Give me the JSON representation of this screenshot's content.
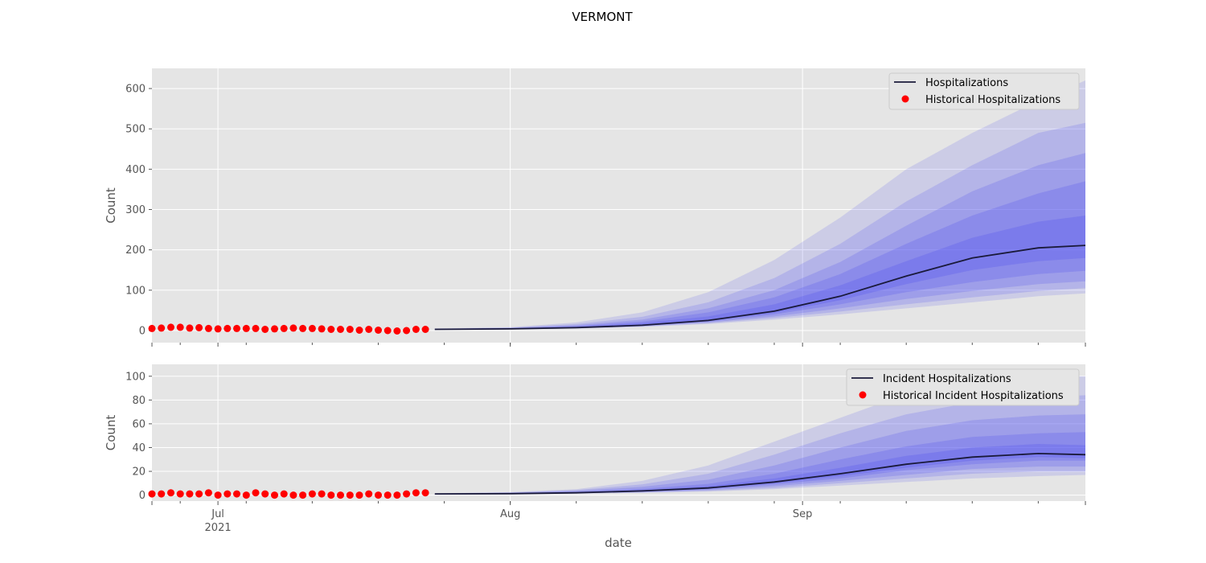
{
  "figure": {
    "title": "VERMONT",
    "xlabel": "date"
  },
  "colors": {
    "panel_bg": "#e5e5e5",
    "grid": "#ffffff",
    "band": "#5555ee",
    "median_line": "#1a1a3a",
    "observed": "#ff0000"
  },
  "chart_data": [
    {
      "type": "line",
      "title": "",
      "xlabel": "date",
      "ylabel": "Count",
      "xlim": [
        "2021-06-24",
        "2021-10-01"
      ],
      "ylim": [
        -30,
        650
      ],
      "yticks": [
        0,
        100,
        200,
        300,
        400,
        500,
        600
      ],
      "xticks": [
        {
          "date": "2021-07-01",
          "label": "",
          "sub": ""
        },
        {
          "date": "2021-08-01",
          "label": "",
          "sub": ""
        },
        {
          "date": "2021-09-01",
          "label": "",
          "sub": ""
        }
      ],
      "grid": true,
      "legend_position": "top-right",
      "legend": [
        "Hospitalizations",
        "Historical Hospitalizations"
      ],
      "observed": {
        "name": "Historical Hospitalizations",
        "start_date": "2021-06-24",
        "values": [
          5,
          6,
          8,
          8,
          6,
          7,
          5,
          4,
          5,
          5,
          5,
          5,
          3,
          4,
          5,
          6,
          5,
          5,
          4,
          3,
          3,
          3,
          1,
          3,
          1,
          0,
          -1,
          0,
          3,
          3
        ]
      },
      "forecast": {
        "name": "Hospitalizations",
        "dates": [
          "2021-07-24",
          "2021-08-01",
          "2021-08-08",
          "2021-08-15",
          "2021-08-22",
          "2021-08-29",
          "2021-09-05",
          "2021-09-12",
          "2021-09-19",
          "2021-09-26",
          "2021-10-01"
        ],
        "median": [
          3,
          4,
          7,
          13,
          25,
          48,
          85,
          135,
          180,
          205,
          211
        ],
        "band_pairs": [
          {
            "lower": [
              2,
              3,
              5,
              9,
              16,
              27,
              40,
              55,
              70,
              85,
              92
            ],
            "upper": [
              5,
              8,
              20,
              45,
              95,
              175,
              280,
              400,
              490,
              570,
              620
            ]
          },
          {
            "lower": [
              2,
              3,
              5,
              10,
              18,
              31,
              47,
              65,
              82,
              98,
              105
            ],
            "upper": [
              4,
              7,
              16,
              34,
              70,
              130,
              215,
              320,
              410,
              490,
              515
            ]
          },
          {
            "lower": [
              2,
              3,
              6,
              11,
              20,
              35,
              55,
              78,
              98,
              115,
              122
            ],
            "upper": [
              4,
              6,
              13,
              27,
              55,
              100,
              170,
              260,
              345,
              410,
              440
            ]
          },
          {
            "lower": [
              2,
              3,
              6,
              12,
              22,
              40,
              65,
              95,
              120,
              140,
              148
            ],
            "upper": [
              4,
              6,
              11,
              22,
              45,
              82,
              140,
              215,
              285,
              340,
              370
            ]
          },
          {
            "lower": [
              3,
              4,
              7,
              12,
              24,
              44,
              75,
              115,
              150,
              172,
              180
            ],
            "upper": [
              4,
              5,
              9,
              18,
              35,
              65,
              112,
              172,
              230,
              270,
              285
            ]
          }
        ]
      }
    },
    {
      "type": "line",
      "title": "",
      "xlabel": "date",
      "ylabel": "Count",
      "xlim": [
        "2021-06-24",
        "2021-10-01"
      ],
      "ylim": [
        -5,
        110
      ],
      "yticks": [
        0,
        20,
        40,
        60,
        80,
        100
      ],
      "xticks": [
        {
          "date": "2021-07-01",
          "label": "Jul",
          "sub": "2021"
        },
        {
          "date": "2021-08-01",
          "label": "Aug",
          "sub": ""
        },
        {
          "date": "2021-09-01",
          "label": "Sep",
          "sub": ""
        }
      ],
      "grid": true,
      "legend_position": "top-right",
      "legend": [
        "Incident Hospitalizations",
        "Historical Incident Hospitalizations"
      ],
      "observed": {
        "name": "Historical Incident Hospitalizations",
        "start_date": "2021-06-24",
        "values": [
          1,
          1,
          2,
          1,
          1,
          1,
          2,
          0,
          1,
          1,
          0,
          2,
          1,
          0,
          1,
          0,
          0,
          1,
          1,
          0,
          0,
          0,
          0,
          1,
          0,
          0,
          0,
          1,
          2,
          2
        ]
      },
      "forecast": {
        "name": "Incident Hospitalizations",
        "dates": [
          "2021-07-24",
          "2021-08-01",
          "2021-08-08",
          "2021-08-15",
          "2021-08-22",
          "2021-08-29",
          "2021-09-05",
          "2021-09-12",
          "2021-09-19",
          "2021-09-26",
          "2021-10-01"
        ],
        "median": [
          1,
          1.2,
          2,
          3.5,
          6,
          11,
          18,
          26,
          32,
          35,
          34
        ],
        "band_pairs": [
          {
            "lower": [
              0.5,
              0.8,
              1.2,
              2,
              3,
              5,
              8,
              11,
              14,
              16,
              17
            ],
            "upper": [
              1.5,
              2.5,
              5,
              12,
              25,
              45,
              65,
              85,
              95,
              100,
              100
            ]
          },
          {
            "lower": [
              0.6,
              0.9,
              1.4,
              2.3,
              3.6,
              6,
              10,
              14,
              18,
              20,
              20
            ],
            "upper": [
              1.4,
              2.2,
              4.2,
              9,
              18,
              34,
              52,
              68,
              78,
              82,
              84
            ]
          },
          {
            "lower": [
              0.7,
              1,
              1.6,
              2.6,
              4.2,
              7.5,
              12,
              17,
              22,
              24,
              24
            ],
            "upper": [
              1.3,
              1.9,
              3.5,
              7,
              13,
              25,
              40,
              54,
              63,
              67,
              68
            ]
          },
          {
            "lower": [
              0.8,
              1.05,
              1.7,
              3,
              5,
              9,
              14,
              21,
              26,
              29,
              29
            ],
            "upper": [
              1.2,
              1.6,
              2.8,
              5.3,
              9.5,
              18,
              30,
              41,
              49,
              52,
              53
            ]
          },
          {
            "lower": [
              0.9,
              1.1,
              1.8,
              3.2,
              5.5,
              10,
              16,
              23,
              29,
              32,
              31
            ],
            "upper": [
              1.1,
              1.4,
              2.4,
              4.3,
              7.5,
              14,
              23,
              33,
              40,
              43,
              42
            ]
          }
        ]
      }
    }
  ]
}
